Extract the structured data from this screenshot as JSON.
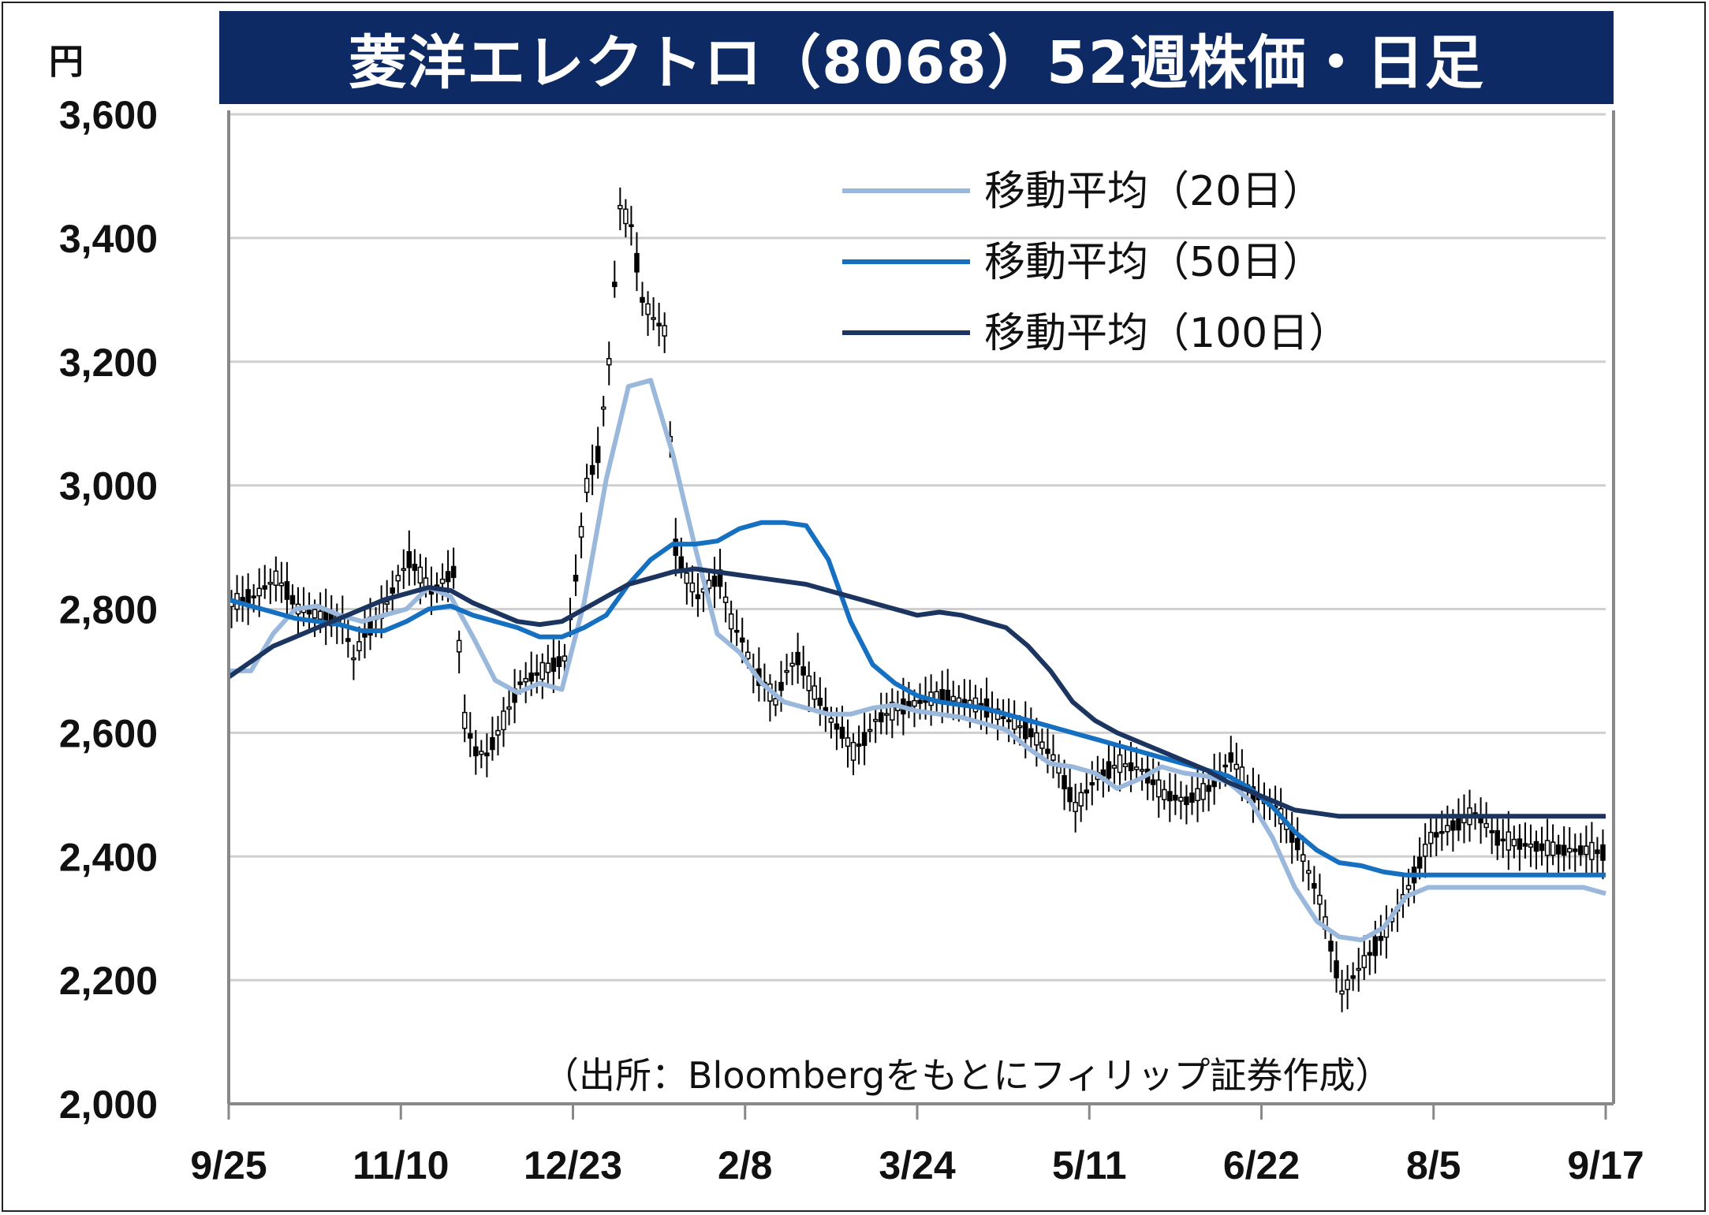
{
  "title": "菱洋エレクトロ（8068）52週株価・日足",
  "unit": "円",
  "source_note": "（出所：Bloombergをもとにフィリップ証券作成）",
  "colors": {
    "title_bg": "#0d2a64",
    "ma20": "#9ab8dc",
    "ma50": "#1670c2",
    "ma100": "#1b3560",
    "candle": "#000000",
    "grid": "#cfcfcf"
  },
  "chart_data": {
    "type": "line",
    "title": "菱洋エレクトロ（8068）52週株価・日足",
    "ylabel": "円",
    "ylim": [
      2000,
      3600
    ],
    "yticks": [
      2000,
      2200,
      2400,
      2600,
      2800,
      3000,
      3200,
      3400,
      3600
    ],
    "ytick_labels": [
      "2,000",
      "2,200",
      "2,400",
      "2,600",
      "2,800",
      "3,000",
      "3,200",
      "3,400",
      "3,600"
    ],
    "xlim": [
      0,
      248
    ],
    "xticks": [
      0,
      31,
      62,
      93,
      124,
      155,
      186,
      217,
      248
    ],
    "xtick_labels": [
      "9/25",
      "11/10",
      "12/23",
      "2/8",
      "3/24",
      "5/11",
      "6/22",
      "8/5",
      "9/17"
    ],
    "grid": true,
    "legend_position": "top-right",
    "series": [
      {
        "name": "移動平均（20日）",
        "color": "#9ab8dc",
        "x": [
          0,
          4,
          8,
          12,
          16,
          20,
          24,
          28,
          32,
          36,
          40,
          44,
          48,
          52,
          56,
          60,
          64,
          68,
          72,
          76,
          80,
          84,
          88,
          92,
          96,
          100,
          104,
          108,
          112,
          116,
          120,
          124,
          128,
          132,
          136,
          140,
          144,
          148,
          152,
          156,
          160,
          164,
          168,
          172,
          176,
          180,
          184,
          188,
          192,
          196,
          200,
          204,
          208,
          212,
          216,
          220,
          224,
          228,
          232,
          236,
          240,
          244,
          248
        ],
        "y": [
          2700,
          2700,
          2760,
          2800,
          2805,
          2790,
          2780,
          2790,
          2800,
          2835,
          2820,
          2755,
          2685,
          2665,
          2680,
          2670,
          2810,
          3010,
          3160,
          3170,
          3050,
          2900,
          2760,
          2730,
          2680,
          2650,
          2640,
          2630,
          2630,
          2640,
          2645,
          2635,
          2630,
          2625,
          2615,
          2605,
          2575,
          2550,
          2545,
          2535,
          2510,
          2525,
          2545,
          2535,
          2530,
          2520,
          2490,
          2430,
          2350,
          2295,
          2270,
          2265,
          2285,
          2335,
          2350,
          2350,
          2350,
          2350,
          2350,
          2350,
          2350,
          2350,
          2340
        ]
      },
      {
        "name": "移動平均（50日）",
        "color": "#1670c2",
        "x": [
          0,
          4,
          8,
          12,
          16,
          20,
          24,
          28,
          32,
          36,
          40,
          44,
          48,
          52,
          56,
          60,
          64,
          68,
          72,
          76,
          80,
          84,
          88,
          92,
          96,
          100,
          104,
          108,
          112,
          116,
          120,
          124,
          128,
          132,
          136,
          140,
          144,
          148,
          152,
          156,
          160,
          164,
          168,
          172,
          176,
          180,
          184,
          188,
          192,
          196,
          200,
          204,
          208,
          212,
          216,
          220,
          224,
          228,
          232,
          236,
          240,
          244,
          248
        ],
        "y": [
          2815,
          2805,
          2795,
          2785,
          2780,
          2775,
          2765,
          2765,
          2780,
          2800,
          2805,
          2790,
          2780,
          2770,
          2755,
          2755,
          2770,
          2790,
          2840,
          2880,
          2905,
          2905,
          2910,
          2930,
          2940,
          2940,
          2935,
          2880,
          2780,
          2710,
          2680,
          2660,
          2650,
          2645,
          2640,
          2630,
          2620,
          2610,
          2600,
          2590,
          2580,
          2570,
          2560,
          2550,
          2540,
          2530,
          2510,
          2480,
          2440,
          2410,
          2390,
          2385,
          2375,
          2370,
          2370,
          2370,
          2370,
          2370,
          2370,
          2370,
          2370,
          2370,
          2370
        ]
      },
      {
        "name": "移動平均（100日）",
        "color": "#1b3560",
        "x": [
          0,
          4,
          8,
          12,
          16,
          20,
          24,
          28,
          32,
          36,
          40,
          44,
          48,
          52,
          56,
          60,
          64,
          68,
          72,
          76,
          80,
          84,
          88,
          92,
          96,
          100,
          104,
          108,
          112,
          116,
          120,
          124,
          128,
          132,
          136,
          140,
          144,
          148,
          152,
          156,
          160,
          164,
          168,
          172,
          176,
          180,
          184,
          188,
          192,
          196,
          200,
          204,
          208,
          212,
          216,
          220,
          224,
          228,
          232,
          236,
          240,
          244,
          248
        ],
        "y": [
          2690,
          2715,
          2740,
          2755,
          2770,
          2785,
          2800,
          2815,
          2825,
          2835,
          2830,
          2810,
          2795,
          2780,
          2775,
          2780,
          2800,
          2820,
          2840,
          2850,
          2860,
          2865,
          2860,
          2855,
          2850,
          2845,
          2840,
          2830,
          2820,
          2810,
          2800,
          2790,
          2795,
          2790,
          2780,
          2770,
          2740,
          2700,
          2650,
          2620,
          2600,
          2585,
          2570,
          2555,
          2540,
          2520,
          2505,
          2490,
          2475,
          2470,
          2465,
          2465,
          2465,
          2465,
          2465,
          2465,
          2465,
          2465,
          2465,
          2465,
          2465,
          2465,
          2465
        ]
      },
      {
        "name": "",
        "color": "#000000",
        "x": [
          0,
          4,
          8,
          10,
          12,
          16,
          20,
          22,
          24,
          28,
          30,
          32,
          36,
          40,
          42,
          44,
          46,
          48,
          52,
          56,
          60,
          62,
          64,
          66,
          68,
          70,
          72,
          74,
          76,
          78,
          80,
          82,
          84,
          86,
          88,
          90,
          92,
          94,
          96,
          98,
          100,
          102,
          104,
          106,
          108,
          110,
          112,
          114,
          116,
          118,
          120,
          124,
          128,
          132,
          136,
          140,
          144,
          148,
          150,
          152,
          156,
          160,
          164,
          168,
          172,
          176,
          180,
          184,
          188,
          192,
          196,
          200,
          204,
          208,
          212,
          216,
          220,
          224,
          228,
          232,
          236,
          240,
          244,
          248
        ],
        "y": [
          2810,
          2820,
          2850,
          2830,
          2800,
          2790,
          2780,
          2720,
          2760,
          2810,
          2850,
          2880,
          2830,
          2860,
          2620,
          2570,
          2565,
          2600,
          2680,
          2700,
          2720,
          2850,
          3000,
          3050,
          3200,
          3450,
          3420,
          3300,
          3270,
          3250,
          2900,
          2850,
          2820,
          2840,
          2850,
          2780,
          2750,
          2700,
          2680,
          2650,
          2700,
          2720,
          2680,
          2650,
          2620,
          2600,
          2570,
          2590,
          2620,
          2630,
          2640,
          2650,
          2660,
          2650,
          2640,
          2620,
          2600,
          2560,
          2520,
          2480,
          2530,
          2550,
          2540,
          2500,
          2490,
          2510,
          2560,
          2500,
          2480,
          2420,
          2330,
          2180,
          2230,
          2280,
          2350,
          2430,
          2450,
          2470,
          2430,
          2420,
          2415,
          2410,
          2410,
          2405
        ]
      }
    ]
  }
}
